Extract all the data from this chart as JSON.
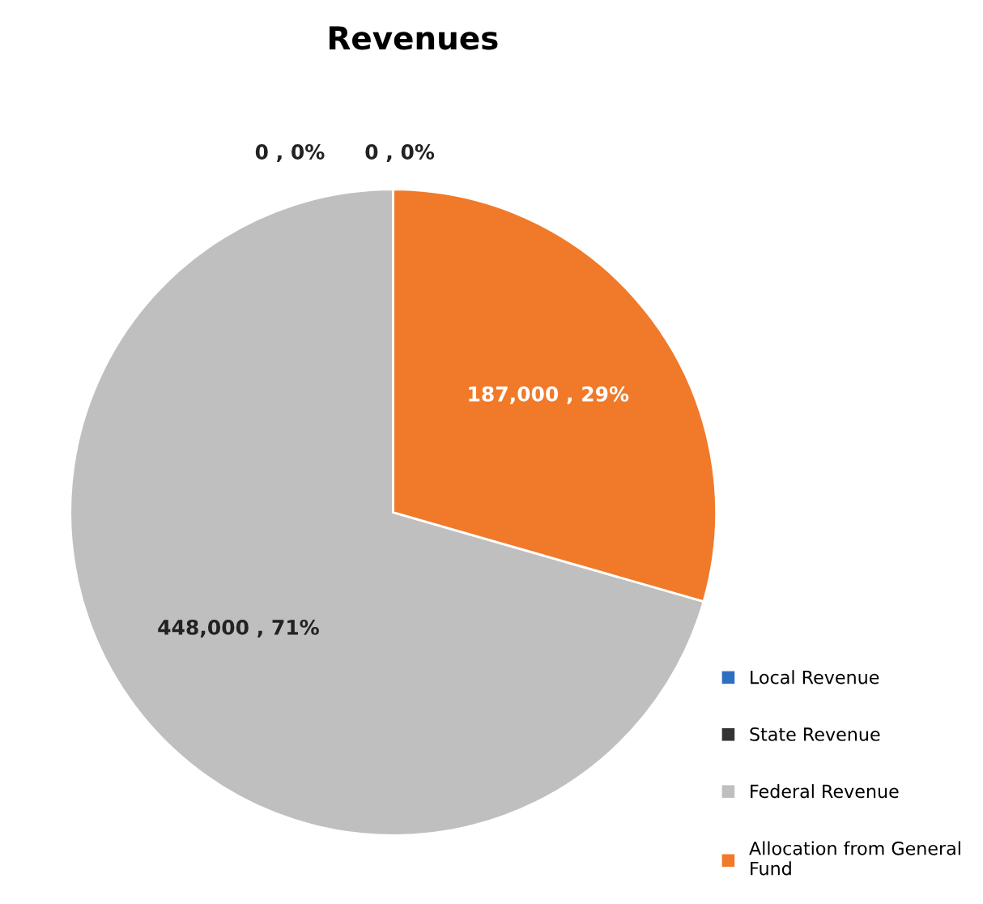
{
  "chart_data": {
    "type": "pie",
    "title": "Revenues",
    "categories": [
      "Local Revenue",
      "State Revenue",
      "Federal Revenue",
      "Allocation from General Fund"
    ],
    "values": [
      0,
      0,
      448000,
      187000
    ],
    "colors": [
      "#2e6fc0",
      "#333333",
      "#bfbfbf",
      "#f07a2a"
    ],
    "value_labels": [
      "0 , 0%",
      "0 , 0%",
      "448,000 , 71%",
      "187,000 , 29%"
    ],
    "legend": "bottom right"
  }
}
